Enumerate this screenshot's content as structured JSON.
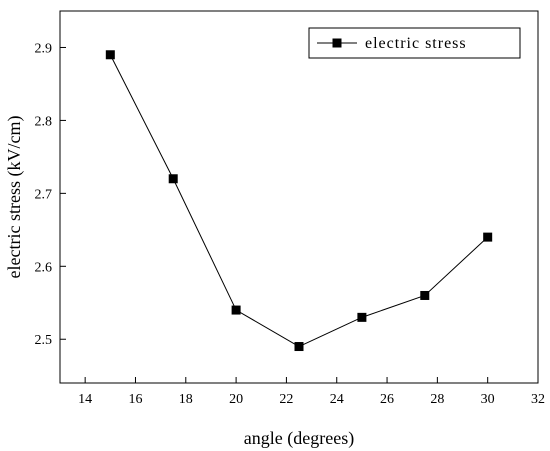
{
  "chart_data": {
    "type": "line",
    "title": "",
    "xlabel": "angle (degrees)",
    "ylabel": "electric stress (kV/cm)",
    "xlim": [
      13,
      32
    ],
    "ylim": [
      2.44,
      2.95
    ],
    "xticks": [
      14,
      16,
      18,
      20,
      22,
      24,
      26,
      28,
      30,
      32
    ],
    "yticks": [
      2.5,
      2.6,
      2.7,
      2.8,
      2.9
    ],
    "grid": false,
    "legend_position": "top-right",
    "series": [
      {
        "name": "electric stress",
        "color": "#000000",
        "marker": "square",
        "x": [
          15,
          17.5,
          20,
          22.5,
          25,
          27.5,
          30
        ],
        "y": [
          2.89,
          2.72,
          2.54,
          2.49,
          2.53,
          2.56,
          2.64
        ]
      }
    ]
  }
}
